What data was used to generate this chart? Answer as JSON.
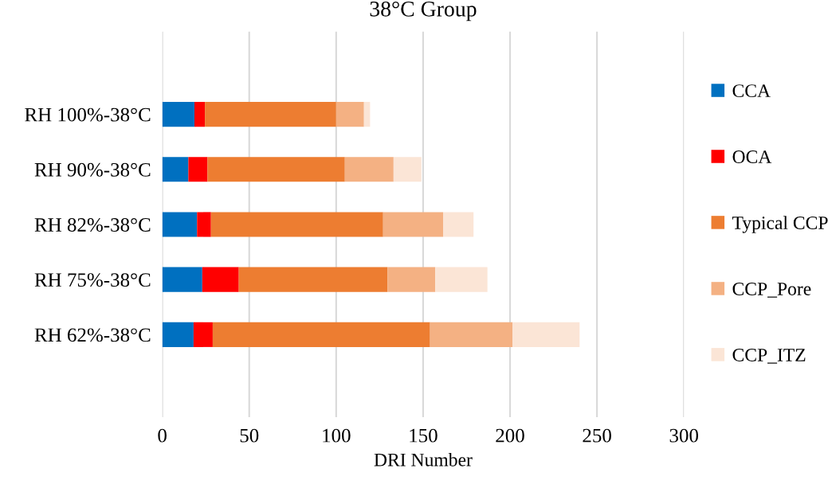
{
  "chart_data": {
    "type": "bar",
    "orientation": "horizontal",
    "stacked": true,
    "title": "38°C Group",
    "xlabel": "DRI Number",
    "categories": [
      "RH 100%-38°C",
      "RH 90%-38°C",
      "RH 82%-38°C",
      "RH 75%-38°C",
      "RH 62%-38°C"
    ],
    "series": [
      {
        "name": "CCA",
        "color": "#0070c0",
        "values": [
          18.5,
          15,
          20,
          23,
          18
        ]
      },
      {
        "name": "OCA",
        "color": "#ff0000",
        "values": [
          6,
          11,
          8,
          21,
          11
        ]
      },
      {
        "name": "Typical CCP",
        "color": "#ed7d31",
        "values": [
          75.5,
          79,
          99,
          85.5,
          125
        ]
      },
      {
        "name": "CCP_Pore",
        "color": "#f4b183",
        "values": [
          16,
          28,
          34.5,
          27.5,
          47.5
        ]
      },
      {
        "name": "CCP_ITZ",
        "color": "#fbe5d6",
        "values": [
          3.5,
          16,
          17.5,
          30,
          38.5
        ]
      }
    ],
    "xlim": [
      0,
      300
    ],
    "xticks": [
      0,
      50,
      100,
      150,
      200,
      250,
      300
    ],
    "grid": "x",
    "legend": "right"
  }
}
